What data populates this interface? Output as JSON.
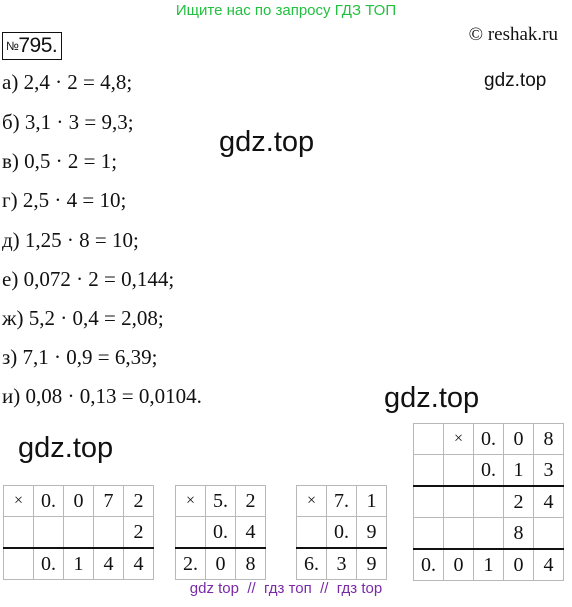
{
  "banner": "Ищите нас по запросу ГДЗ ТОП",
  "task": {
    "prefix": "№",
    "number": "795."
  },
  "copyright": "© reshak.ru",
  "watermarks": {
    "top_right": "gdz.top",
    "center": "gdz.top",
    "mid_right": "gdz.top",
    "left": "gdz.top"
  },
  "solutions": [
    "а) 2,4 · 2 = 4,8;",
    "б) 3,1 · 3 = 9,3;",
    "в) 0,5 · 2 = 1;",
    "г) 2,5 · 4 = 10;",
    "д) 1,25 · 8 = 10;",
    "е) 0,072 · 2 = 0,144;",
    "ж) 5,2 · 0,4 = 2,08;",
    "з) 7,1 · 0,9 = 6,39;",
    "и) 0,08 · 0,13 = 0,0104."
  ],
  "columns": [
    {
      "rows": [
        [
          "×",
          "0.",
          "0",
          "7",
          "2"
        ],
        [
          "",
          "",
          "",
          "",
          "2"
        ],
        [
          "",
          "0.",
          "1",
          "4",
          "4"
        ]
      ]
    },
    {
      "rows": [
        [
          "×",
          "5.",
          "2"
        ],
        [
          "",
          "0.",
          "4"
        ],
        [
          "2.",
          "0",
          "8"
        ]
      ]
    },
    {
      "rows": [
        [
          "×",
          "7.",
          "1"
        ],
        [
          "",
          "0.",
          "9"
        ],
        [
          "6.",
          "3",
          "9"
        ]
      ]
    },
    {
      "rows": [
        [
          "",
          "×",
          "0.",
          "0",
          "8"
        ],
        [
          "",
          "",
          "0.",
          "1",
          "3"
        ],
        [
          "",
          "",
          "",
          "2",
          "4"
        ],
        [
          "",
          "",
          "",
          "8",
          ""
        ],
        [
          "0.",
          "0",
          "1",
          "0",
          "4"
        ]
      ]
    }
  ],
  "footer": "gdz top  //  гдз топ  //  гдз top"
}
